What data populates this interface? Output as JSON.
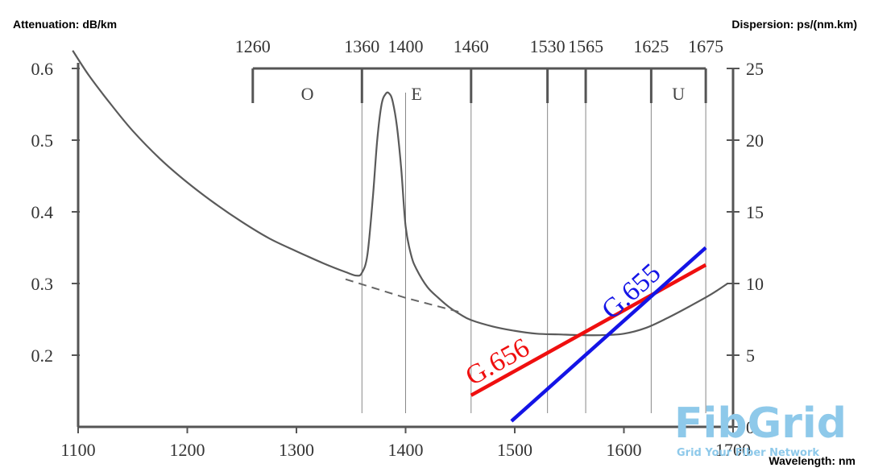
{
  "chart_data": {
    "type": "line",
    "y_left_title": "Attenuation: dB/km",
    "y_right_title": "Dispersion: ps/(nm.km)",
    "xlabel": "Wavelength: nm",
    "xlim": [
      1100,
      1700
    ],
    "x_ticks": [
      "1100",
      "1200",
      "1300",
      "1400",
      "1500",
      "1600",
      "1700"
    ],
    "y_left_lim": [
      0.1,
      0.6
    ],
    "y_left_ticks": [
      "0.2",
      "0.3",
      "0.4",
      "0.5",
      "0.6"
    ],
    "y_right_lim": [
      0,
      25
    ],
    "y_right_ticks": [
      "0",
      "5",
      "10",
      "15",
      "20",
      "25"
    ],
    "band_boundaries": [
      "1260",
      "1360",
      "1400",
      "1460",
      "1530",
      "1565",
      "1625",
      "1675"
    ],
    "band_labels": [
      {
        "name": "O",
        "center": 1310
      },
      {
        "name": "E",
        "center": 1410
      },
      {
        "name": "U",
        "center": 1650
      }
    ],
    "attenuation_curve": {
      "x": [
        1095,
        1110,
        1130,
        1150,
        1175,
        1200,
        1225,
        1250,
        1275,
        1300,
        1325,
        1345,
        1355,
        1360,
        1365,
        1370,
        1374,
        1378,
        1382,
        1385,
        1388,
        1392,
        1396,
        1400,
        1405,
        1410,
        1420,
        1430,
        1440,
        1450,
        1460,
        1480,
        1500,
        1520,
        1540,
        1560,
        1580,
        1600,
        1620,
        1640,
        1660,
        1680,
        1695
      ],
      "y": [
        0.625,
        0.59,
        0.55,
        0.513,
        0.474,
        0.441,
        0.412,
        0.386,
        0.363,
        0.345,
        0.328,
        0.316,
        0.311,
        0.315,
        0.34,
        0.42,
        0.5,
        0.55,
        0.565,
        0.565,
        0.555,
        0.52,
        0.46,
        0.38,
        0.34,
        0.32,
        0.295,
        0.28,
        0.267,
        0.257,
        0.249,
        0.24,
        0.234,
        0.23,
        0.229,
        0.228,
        0.228,
        0.23,
        0.238,
        0.252,
        0.268,
        0.285,
        0.3
      ]
    },
    "attenuation_dashed": {
      "x": [
        1345,
        1400,
        1450
      ],
      "y": [
        0.306,
        0.28,
        0.26
      ]
    },
    "series": [
      {
        "name": "G.656",
        "color": "#ef0f0f",
        "x": [
          1460,
          1675
        ],
        "y": [
          2.2,
          11.3
        ],
        "label_x": 1488,
        "label_y": 4.0
      },
      {
        "name": "G.655",
        "color": "#1414e6",
        "x": [
          1497,
          1675
        ],
        "y": [
          0.4,
          12.5
        ],
        "label_x": 1612,
        "label_y": 9.0
      }
    ]
  },
  "logo": {
    "main": "FibGrid",
    "tagline": "Grid Your Fiber Network"
  }
}
